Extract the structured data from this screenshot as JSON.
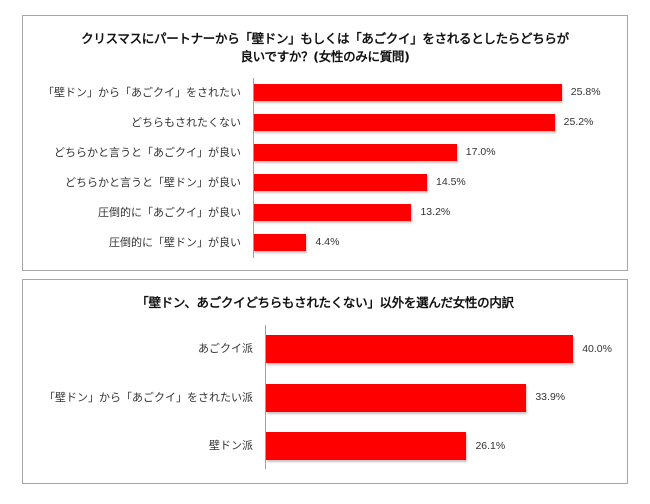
{
  "chart_data": [
    {
      "type": "bar",
      "orientation": "horizontal",
      "title": "クリスマスにパートナーから「壁ドン」もしくは「あごクイ」をされるとしたらどちらが良いですか？(女性のみに質問)",
      "title_lines": [
        "クリスマスにパートナーから「壁ドン」もしくは「あごクイ」をされるとしたらどちらが",
        "良いですか？(女性のみに質問)"
      ],
      "categories": [
        "「壁ドン」から「あごクイ」をされたい",
        "どちらもされたくない",
        "どちらかと言うと「あごクイ」が良い",
        "どちらかと言うと「壁ドン」が良い",
        "圧倒的に「あごクイ」が良い",
        "圧倒的に「壁ドン」が良い"
      ],
      "values": [
        25.8,
        25.2,
        17.0,
        14.5,
        13.2,
        4.4
      ],
      "value_labels": [
        "25.8%",
        "25.2%",
        "17.0%",
        "14.5%",
        "13.2%",
        "4.4%"
      ],
      "unit": "%",
      "xlabel": "",
      "ylabel": "",
      "grid": false,
      "legend": null,
      "bar_color": "#FF0000"
    },
    {
      "type": "bar",
      "orientation": "horizontal",
      "title": "「壁ドン、あごクイどちらもされたくない」以外を選んだ女性の内訳",
      "categories": [
        "あごクイ派",
        "「壁ドン」から「あごクイ」をされたい派",
        "壁ドン派"
      ],
      "values": [
        40.0,
        33.9,
        26.1
      ],
      "value_labels": [
        "40.0%",
        "33.9%",
        "26.1%"
      ],
      "unit": "%",
      "xlabel": "",
      "ylabel": "",
      "grid": false,
      "legend": null,
      "bar_color": "#FF0000"
    }
  ],
  "charts": {
    "chart1": {
      "title_line1": "クリスマスにパートナーから「壁ドン」もしくは「あごクイ」をされるとしたらどちらが",
      "title_line2": "良いですか？(女性のみに質問)",
      "rows": [
        {
          "label": "「壁ドン」から「あごクイ」をされたい",
          "value": 25.8,
          "value_label": "25.8%"
        },
        {
          "label": "どちらもされたくない",
          "value": 25.2,
          "value_label": "25.2%"
        },
        {
          "label": "どちらかと言うと「あごクイ」が良い",
          "value": 17.0,
          "value_label": "17.0%"
        },
        {
          "label": "どちらかと言うと「壁ドン」が良い",
          "value": 14.5,
          "value_label": "14.5%"
        },
        {
          "label": "圧倒的に「あごクイ」が良い",
          "value": 13.2,
          "value_label": "13.2%"
        },
        {
          "label": "圧倒的に「壁ドン」が良い",
          "value": 4.4,
          "value_label": "4.4%"
        }
      ]
    },
    "chart2": {
      "title": "「壁ドン、あごクイどちらもされたくない」以外を選んだ女性の内訳",
      "rows": [
        {
          "label": "あごクイ派",
          "value": 40.0,
          "value_label": "40.0%"
        },
        {
          "label": "「壁ドン」から「あごクイ」をされたい派",
          "value": 33.9,
          "value_label": "33.9%"
        },
        {
          "label": "壁ドン派",
          "value": 26.1,
          "value_label": "26.1%"
        }
      ]
    }
  },
  "colors": {
    "bar": "#FF0000",
    "frame_border": "#A6A6A6",
    "axis": "#A0A0A0",
    "text": "#333333"
  }
}
